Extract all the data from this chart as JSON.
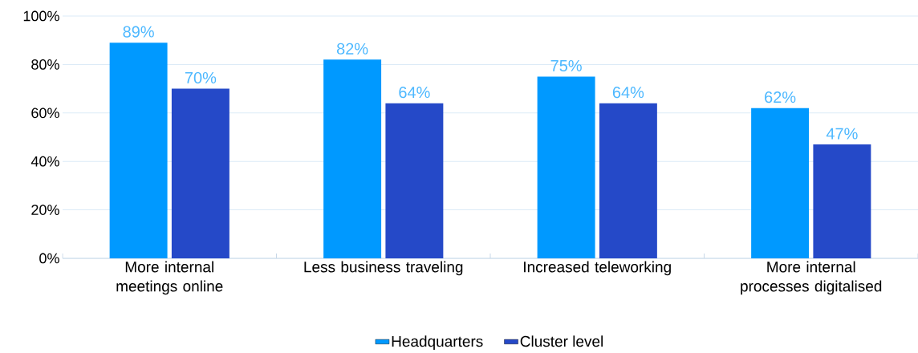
{
  "chart_data": {
    "type": "bar",
    "categories": [
      "More internal meetings online",
      "Less business traveling",
      "Increased teleworking",
      "More internal processes digitalised"
    ],
    "series": [
      {
        "name": "Headquarters",
        "color": "#0099ff",
        "values": [
          89,
          82,
          75,
          62
        ],
        "value_labels": [
          "89%",
          "82%",
          "75%",
          "62%"
        ]
      },
      {
        "name": "Cluster level",
        "color": "#2549c8",
        "values": [
          70,
          64,
          64,
          47
        ],
        "value_labels": [
          "70%",
          "64%",
          "64%",
          "47%"
        ]
      }
    ],
    "ylim": [
      0,
      100
    ],
    "yticks": [
      {
        "value": 0,
        "label": "0%"
      },
      {
        "value": 20,
        "label": "20%"
      },
      {
        "value": 40,
        "label": "40%"
      },
      {
        "value": 60,
        "label": "60%"
      },
      {
        "value": 80,
        "label": "80%"
      },
      {
        "value": 100,
        "label": "100%"
      }
    ],
    "grid": "y",
    "legend": "bottom"
  }
}
